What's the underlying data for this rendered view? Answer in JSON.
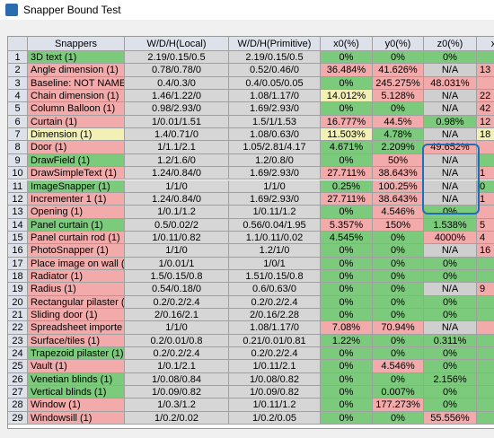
{
  "window": {
    "title": "Snapper Bound Test"
  },
  "table": {
    "headers": [
      "Snappers",
      "W/D/H(Local)",
      "W/D/H(Primitive)",
      "x0(%)",
      "y0(%)",
      "z0(%)",
      "x"
    ],
    "rows": [
      {
        "n": "1",
        "cells": [
          "3D text (1)",
          "2.19/0.15/0.5",
          "2.19/0.15/0.5",
          "0%",
          "0%",
          "0%"
        ],
        "colors": [
          "#7ccb7c",
          "#7ccb7c",
          "#7ccb7c",
          "#7ccb7c",
          "#7ccb7c"
        ]
      },
      {
        "n": "2",
        "cells": [
          "Angle dimension (1)",
          "0.78/0.78/0",
          "0.52/0.46/0",
          "36.484%",
          "41.626%",
          "N/A"
        ],
        "extra": "13",
        "colors": [
          "#f2aaaa",
          "#f2aaaa",
          "#f2aaaa",
          "#cfcfcf",
          "#f2aaaa"
        ]
      },
      {
        "n": "3",
        "cells": [
          "Baseline: NOT NAMEI",
          "0.4/0.3/0",
          "0.4/0.05/0.05",
          "0%",
          "245.275%",
          "48.031%"
        ],
        "colors": [
          "#f2aaaa",
          "#7ccb7c",
          "#f2aaaa",
          "#f2aaaa",
          "#f2aaaa"
        ]
      },
      {
        "n": "4",
        "cells": [
          "Chain dimension (1)",
          "1.46/1.22/0",
          "1.08/1.17/0",
          "14.012%",
          "5.128%",
          "N/A"
        ],
        "extra": "22",
        "colors": [
          "#f2aaaa",
          "#f3f0b5",
          "#f2aaaa",
          "#cfcfcf",
          "#f2aaaa"
        ]
      },
      {
        "n": "5",
        "cells": [
          "Column Balloon (1)",
          "0.98/2.93/0",
          "1.69/2.93/0",
          "0%",
          "0%",
          "N/A"
        ],
        "extra": "42",
        "colors": [
          "#f2aaaa",
          "#7ccb7c",
          "#7ccb7c",
          "#cfcfcf",
          "#f2aaaa"
        ]
      },
      {
        "n": "6",
        "cells": [
          "Curtain (1)",
          "1/0.01/1.51",
          "1.5/1/1.53",
          "16.777%",
          "44.5%",
          "0.98%"
        ],
        "extra": "12",
        "colors": [
          "#f2aaaa",
          "#f2aaaa",
          "#f2aaaa",
          "#7ccb7c",
          "#f2aaaa"
        ]
      },
      {
        "n": "7",
        "cells": [
          "Dimension (1)",
          "1.4/0.71/0",
          "1.08/0.63/0",
          "11.503%",
          "4.78%",
          "N/A"
        ],
        "extra": "18",
        "colors": [
          "#f3f0b5",
          "#f3f0b5",
          "#7ccb7c",
          "#cfcfcf",
          "#f3f0b5"
        ]
      },
      {
        "n": "8",
        "cells": [
          "Door (1)",
          "1/1.1/2.1",
          "1.05/2.81/4.17",
          "4.671%",
          "2.209%",
          "49.652%"
        ],
        "colors": [
          "#f2aaaa",
          "#7ccb7c",
          "#7ccb7c",
          "#f2aaaa",
          "#f2aaaa"
        ]
      },
      {
        "n": "9",
        "cells": [
          "DrawField (1)",
          "1.2/1.6/0",
          "1.2/0.8/0",
          "0%",
          "50%",
          "N/A"
        ],
        "colors": [
          "#7ccb7c",
          "#7ccb7c",
          "#f2aaaa",
          "#cfcfcf",
          "#7ccb7c"
        ]
      },
      {
        "n": "10",
        "cells": [
          "DrawSimpleText (1)",
          "1.24/0.84/0",
          "1.69/2.93/0",
          "27.711%",
          "38.643%",
          "N/A"
        ],
        "extra": "1",
        "colors": [
          "#f2aaaa",
          "#f2aaaa",
          "#f2aaaa",
          "#cfcfcf",
          "#f2aaaa"
        ]
      },
      {
        "n": "11",
        "cells": [
          "ImageSnapper (1)",
          "1/1/0",
          "1/1/0",
          "0.25%",
          "100.25%",
          "N/A"
        ],
        "extra": "0",
        "colors": [
          "#7ccb7c",
          "#7ccb7c",
          "#f2aaaa",
          "#cfcfcf",
          "#7ccb7c"
        ]
      },
      {
        "n": "12",
        "cells": [
          "Incrementer 1 (1)",
          "1.24/0.84/0",
          "1.69/2.93/0",
          "27.711%",
          "38.643%",
          "N/A"
        ],
        "extra": "1",
        "colors": [
          "#f2aaaa",
          "#f2aaaa",
          "#f2aaaa",
          "#cfcfcf",
          "#f2aaaa"
        ]
      },
      {
        "n": "13",
        "cells": [
          "Opening (1)",
          "1/0.1/1.2",
          "1/0.11/1.2",
          "0%",
          "4.546%",
          "0%"
        ],
        "colors": [
          "#f2aaaa",
          "#7ccb7c",
          "#f2aaaa",
          "#7ccb7c",
          "#f2aaaa"
        ]
      },
      {
        "n": "14",
        "cells": [
          "Panel curtain (1)",
          "0.5/0.02/2",
          "0.56/0.04/1.95",
          "5.357%",
          "150%",
          "1.538%"
        ],
        "extra": "5",
        "colors": [
          "#7ccb7c",
          "#f2aaaa",
          "#f2aaaa",
          "#7ccb7c",
          "#f2aaaa"
        ]
      },
      {
        "n": "15",
        "cells": [
          "Panel curtain rod (1)",
          "1/0.11/0.82",
          "1.1/0.11/0.02",
          "4.545%",
          "0%",
          "4000%"
        ],
        "extra": "4",
        "colors": [
          "#f2aaaa",
          "#7ccb7c",
          "#7ccb7c",
          "#f2aaaa",
          "#f2aaaa"
        ]
      },
      {
        "n": "16",
        "cells": [
          "PhotoSnapper (1)",
          "1/1/0",
          "1.2/1/0",
          "0%",
          "0%",
          "N/A"
        ],
        "extra": "16",
        "colors": [
          "#f2aaaa",
          "#7ccb7c",
          "#7ccb7c",
          "#cfcfcf",
          "#f2aaaa"
        ]
      },
      {
        "n": "17",
        "cells": [
          "Place image on wall (",
          "1/0.01/1",
          "1/0/1",
          "0%",
          "0%",
          "0%"
        ],
        "colors": [
          "#f2aaaa",
          "#7ccb7c",
          "#7ccb7c",
          "#7ccb7c",
          "#7ccb7c"
        ]
      },
      {
        "n": "18",
        "cells": [
          "Radiator (1)",
          "1.5/0.15/0.8",
          "1.51/0.15/0.8",
          "0%",
          "0%",
          "0%"
        ],
        "colors": [
          "#f2aaaa",
          "#7ccb7c",
          "#7ccb7c",
          "#7ccb7c",
          "#7ccb7c"
        ]
      },
      {
        "n": "19",
        "cells": [
          "Radius (1)",
          "0.54/0.18/0",
          "0.6/0.63/0",
          "0%",
          "0%",
          "N/A"
        ],
        "extra": "9",
        "colors": [
          "#f2aaaa",
          "#7ccb7c",
          "#7ccb7c",
          "#cfcfcf",
          "#f2aaaa"
        ]
      },
      {
        "n": "20",
        "cells": [
          "Rectangular pilaster (",
          "0.2/0.2/2.4",
          "0.2/0.2/2.4",
          "0%",
          "0%",
          "0%"
        ],
        "colors": [
          "#f2aaaa",
          "#7ccb7c",
          "#7ccb7c",
          "#7ccb7c",
          "#7ccb7c"
        ]
      },
      {
        "n": "21",
        "cells": [
          "Sliding door (1)",
          "2/0.16/2.1",
          "2/0.16/2.28",
          "0%",
          "0%",
          "0%"
        ],
        "colors": [
          "#f2aaaa",
          "#7ccb7c",
          "#7ccb7c",
          "#7ccb7c",
          "#7ccb7c"
        ]
      },
      {
        "n": "22",
        "cells": [
          "Spreadsheet importe",
          "1/1/0",
          "1.08/1.17/0",
          "7.08%",
          "70.94%",
          "N/A"
        ],
        "colors": [
          "#f2aaaa",
          "#f2aaaa",
          "#f2aaaa",
          "#cfcfcf",
          "#f2aaaa"
        ]
      },
      {
        "n": "23",
        "cells": [
          "Surface/tiles (1)",
          "0.2/0.01/0.8",
          "0.21/0.01/0.81",
          "1.22%",
          "0%",
          "0.311%"
        ],
        "colors": [
          "#f2aaaa",
          "#7ccb7c",
          "#7ccb7c",
          "#7ccb7c",
          "#7ccb7c"
        ]
      },
      {
        "n": "24",
        "cells": [
          "Trapezoid pilaster (1)",
          "0.2/0.2/2.4",
          "0.2/0.2/2.4",
          "0%",
          "0%",
          "0%"
        ],
        "colors": [
          "#7ccb7c",
          "#7ccb7c",
          "#7ccb7c",
          "#7ccb7c",
          "#7ccb7c"
        ]
      },
      {
        "n": "25",
        "cells": [
          "Vault (1)",
          "1/0.1/2.1",
          "1/0.11/2.1",
          "0%",
          "4.546%",
          "0%"
        ],
        "colors": [
          "#f2aaaa",
          "#7ccb7c",
          "#f2aaaa",
          "#7ccb7c",
          "#7ccb7c"
        ]
      },
      {
        "n": "26",
        "cells": [
          "Venetian blinds (1)",
          "1/0.08/0.84",
          "1/0.08/0.82",
          "0%",
          "0%",
          "2.156%"
        ],
        "colors": [
          "#7ccb7c",
          "#7ccb7c",
          "#7ccb7c",
          "#7ccb7c",
          "#7ccb7c"
        ]
      },
      {
        "n": "27",
        "cells": [
          "Vertical blinds (1)",
          "1/0.09/0.82",
          "1/0.09/0.82",
          "0%",
          "0.007%",
          "0%"
        ],
        "colors": [
          "#7ccb7c",
          "#7ccb7c",
          "#7ccb7c",
          "#7ccb7c",
          "#7ccb7c"
        ]
      },
      {
        "n": "28",
        "cells": [
          "Window (1)",
          "1/0.3/1.2",
          "1/0.11/1.2",
          "0%",
          "177.273%",
          "0%"
        ],
        "colors": [
          "#f2aaaa",
          "#7ccb7c",
          "#f2aaaa",
          "#7ccb7c",
          "#7ccb7c"
        ]
      },
      {
        "n": "29",
        "cells": [
          "Windowsill (1)",
          "1/0.2/0.02",
          "1/0.2/0.05",
          "0%",
          "0%",
          "55.556%"
        ],
        "colors": [
          "#f2aaaa",
          "#7ccb7c",
          "#7ccb7c",
          "#f2aaaa",
          "#7ccb7c"
        ]
      }
    ]
  }
}
